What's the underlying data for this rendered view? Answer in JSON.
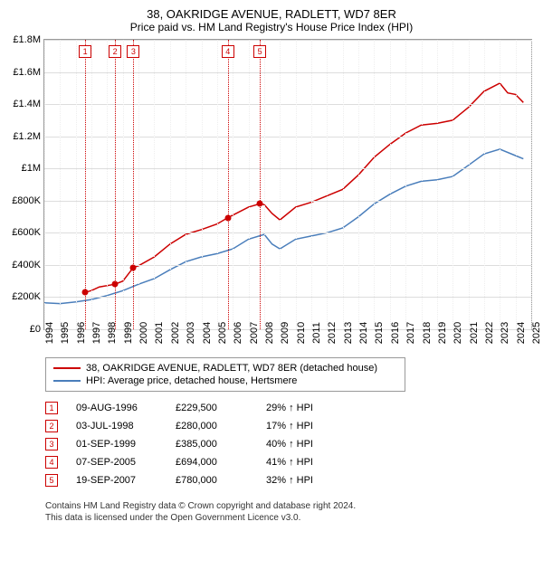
{
  "title": "38, OAKRIDGE AVENUE, RADLETT, WD7 8ER",
  "subtitle": "Price paid vs. HM Land Registry's House Price Index (HPI)",
  "chart": {
    "type": "line",
    "background_color": "#ffffff",
    "grid_color": "#dddddd",
    "xlim": [
      1994,
      2025
    ],
    "ylim": [
      0,
      1800000
    ],
    "ytick_step": 200000,
    "ytick_labels": [
      "£0",
      "£200K",
      "£400K",
      "£600K",
      "£800K",
      "£1M",
      "£1.2M",
      "£1.4M",
      "£1.6M",
      "£1.8M"
    ],
    "xtick_step": 1,
    "xtick_labels": [
      "1994",
      "1995",
      "1996",
      "1997",
      "1998",
      "1999",
      "2000",
      "2001",
      "2002",
      "2003",
      "2004",
      "2005",
      "2006",
      "2007",
      "2008",
      "2009",
      "2010",
      "2011",
      "2012",
      "2013",
      "2014",
      "2015",
      "2016",
      "2017",
      "2018",
      "2019",
      "2020",
      "2021",
      "2022",
      "2023",
      "2024",
      "2025"
    ],
    "series": [
      {
        "name": "38, OAKRIDGE AVENUE, RADLETT, WD7 8ER (detached house)",
        "color": "#cc0000",
        "line_width": 1.5,
        "points": [
          [
            1996.6,
            229500
          ],
          [
            1997,
            241000
          ],
          [
            1997.5,
            263000
          ],
          [
            1998.5,
            280000
          ],
          [
            1999,
            300000
          ],
          [
            1999.67,
            385000
          ],
          [
            2000,
            395000
          ],
          [
            2001,
            450000
          ],
          [
            2002,
            530000
          ],
          [
            2003,
            590000
          ],
          [
            2004,
            620000
          ],
          [
            2005,
            655000
          ],
          [
            2005.68,
            694000
          ],
          [
            2006,
            710000
          ],
          [
            2007,
            760000
          ],
          [
            2007.72,
            780000
          ],
          [
            2008,
            775000
          ],
          [
            2008.5,
            720000
          ],
          [
            2009,
            680000
          ],
          [
            2010,
            760000
          ],
          [
            2011,
            790000
          ],
          [
            2012,
            830000
          ],
          [
            2013,
            870000
          ],
          [
            2014,
            960000
          ],
          [
            2015,
            1070000
          ],
          [
            2016,
            1150000
          ],
          [
            2017,
            1220000
          ],
          [
            2018,
            1270000
          ],
          [
            2019,
            1280000
          ],
          [
            2020,
            1300000
          ],
          [
            2021,
            1380000
          ],
          [
            2022,
            1480000
          ],
          [
            2023,
            1530000
          ],
          [
            2023.5,
            1470000
          ],
          [
            2024,
            1460000
          ],
          [
            2024.5,
            1410000
          ]
        ]
      },
      {
        "name": "HPI: Average price, detached house, Hertsmere",
        "color": "#4a7ebb",
        "line_width": 1.5,
        "points": [
          [
            1994,
            165000
          ],
          [
            1995,
            160000
          ],
          [
            1996,
            170000
          ],
          [
            1997,
            185000
          ],
          [
            1998,
            210000
          ],
          [
            1999,
            240000
          ],
          [
            2000,
            280000
          ],
          [
            2001,
            315000
          ],
          [
            2002,
            370000
          ],
          [
            2003,
            420000
          ],
          [
            2004,
            450000
          ],
          [
            2005,
            470000
          ],
          [
            2006,
            500000
          ],
          [
            2007,
            560000
          ],
          [
            2008,
            590000
          ],
          [
            2008.5,
            530000
          ],
          [
            2009,
            500000
          ],
          [
            2010,
            560000
          ],
          [
            2011,
            580000
          ],
          [
            2012,
            600000
          ],
          [
            2013,
            630000
          ],
          [
            2014,
            700000
          ],
          [
            2015,
            780000
          ],
          [
            2016,
            840000
          ],
          [
            2017,
            890000
          ],
          [
            2018,
            920000
          ],
          [
            2019,
            930000
          ],
          [
            2020,
            950000
          ],
          [
            2021,
            1020000
          ],
          [
            2022,
            1090000
          ],
          [
            2023,
            1120000
          ],
          [
            2024,
            1080000
          ],
          [
            2024.5,
            1060000
          ]
        ]
      }
    ],
    "sale_markers": [
      {
        "n": "1",
        "year": 1996.6,
        "price": 229500
      },
      {
        "n": "2",
        "year": 1998.5,
        "price": 280000
      },
      {
        "n": "3",
        "year": 1999.67,
        "price": 385000
      },
      {
        "n": "4",
        "year": 2005.68,
        "price": 694000
      },
      {
        "n": "5",
        "year": 2007.72,
        "price": 780000
      }
    ],
    "marker_box_color": "#cc0000",
    "marker_line_color": "#cc0000",
    "sale_dot_color": "#cc0000",
    "label_fontsize": 11,
    "title_fontsize": 13
  },
  "legend": [
    {
      "color": "#cc0000",
      "label": "38, OAKRIDGE AVENUE, RADLETT, WD7 8ER (detached house)"
    },
    {
      "color": "#4a7ebb",
      "label": "HPI: Average price, detached house, Hertsmere"
    }
  ],
  "sales": [
    {
      "n": "1",
      "date": "09-AUG-1996",
      "price": "£229,500",
      "hpi": "29% ↑ HPI"
    },
    {
      "n": "2",
      "date": "03-JUL-1998",
      "price": "£280,000",
      "hpi": "17% ↑ HPI"
    },
    {
      "n": "3",
      "date": "01-SEP-1999",
      "price": "£385,000",
      "hpi": "40% ↑ HPI"
    },
    {
      "n": "4",
      "date": "07-SEP-2005",
      "price": "£694,000",
      "hpi": "41% ↑ HPI"
    },
    {
      "n": "5",
      "date": "19-SEP-2007",
      "price": "£780,000",
      "hpi": "32% ↑ HPI"
    }
  ],
  "footnote_line1": "Contains HM Land Registry data © Crown copyright and database right 2024.",
  "footnote_line2": "This data is licensed under the Open Government Licence v3.0."
}
